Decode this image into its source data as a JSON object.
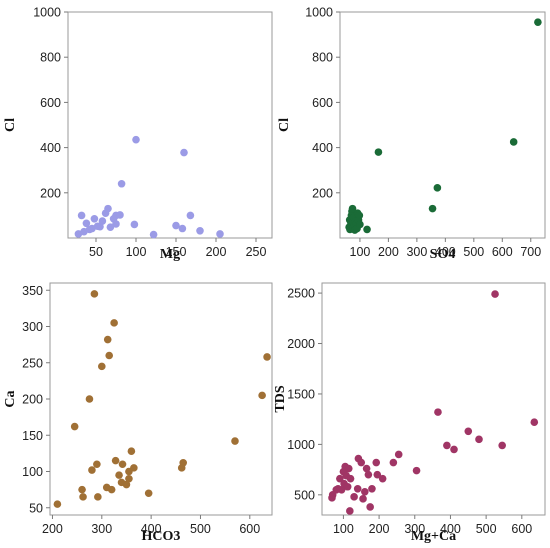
{
  "chart_data": [
    {
      "type": "scatter",
      "title": "",
      "xlabel": "Mg",
      "ylabel": "Cl",
      "xlim": [
        15,
        270
      ],
      "ylim": [
        0,
        1000
      ],
      "xticks": [
        50,
        100,
        150,
        200,
        250
      ],
      "yticks": [
        200,
        400,
        600,
        800,
        1000
      ],
      "color": "#9b9be6",
      "grid": false,
      "points": [
        [
          28,
          18
        ],
        [
          32,
          100
        ],
        [
          35,
          28
        ],
        [
          38,
          65
        ],
        [
          42,
          38
        ],
        [
          45,
          42
        ],
        [
          48,
          85
        ],
        [
          52,
          52
        ],
        [
          55,
          50
        ],
        [
          58,
          75
        ],
        [
          62,
          110
        ],
        [
          65,
          130
        ],
        [
          68,
          48
        ],
        [
          72,
          85
        ],
        [
          75,
          62
        ],
        [
          75,
          100
        ],
        [
          80,
          102
        ],
        [
          82,
          240
        ],
        [
          98,
          60
        ],
        [
          100,
          435
        ],
        [
          122,
          15
        ],
        [
          150,
          55
        ],
        [
          158,
          42
        ],
        [
          160,
          378
        ],
        [
          168,
          100
        ],
        [
          180,
          32
        ],
        [
          205,
          18
        ]
      ]
    },
    {
      "type": "scatter",
      "title": "",
      "xlabel": "SO4",
      "ylabel": "Cl",
      "xlim": [
        30,
        750
      ],
      "ylim": [
        0,
        1000
      ],
      "xticks": [
        100,
        200,
        300,
        400,
        500,
        600,
        700
      ],
      "yticks": [
        200,
        400,
        600,
        800,
        1000
      ],
      "color": "#1a6b37",
      "grid": false,
      "points": [
        [
          62,
          48
        ],
        [
          64,
          80
        ],
        [
          65,
          38
        ],
        [
          68,
          60
        ],
        [
          70,
          100
        ],
        [
          72,
          118
        ],
        [
          74,
          130
        ],
        [
          75,
          45
        ],
        [
          76,
          70
        ],
        [
          78,
          90
        ],
        [
          80,
          55
        ],
        [
          82,
          35
        ],
        [
          85,
          75
        ],
        [
          88,
          62
        ],
        [
          90,
          42
        ],
        [
          92,
          110
        ],
        [
          95,
          80
        ],
        [
          98,
          100
        ],
        [
          100,
          60
        ],
        [
          125,
          38
        ],
        [
          165,
          380
        ],
        [
          355,
          130
        ],
        [
          372,
          222
        ],
        [
          640,
          425
        ],
        [
          725,
          955
        ]
      ]
    },
    {
      "type": "scatter",
      "title": "",
      "xlabel": "HCO3",
      "ylabel": "Ca",
      "xlim": [
        195,
        645
      ],
      "ylim": [
        40,
        360
      ],
      "xticks": [
        200,
        300,
        400,
        500,
        600
      ],
      "yticks": [
        50,
        100,
        150,
        200,
        250,
        300,
        350
      ],
      "color": "#a07035",
      "grid": false,
      "points": [
        [
          210,
          55
        ],
        [
          245,
          162
        ],
        [
          260,
          75
        ],
        [
          262,
          65
        ],
        [
          275,
          200
        ],
        [
          280,
          102
        ],
        [
          285,
          345
        ],
        [
          290,
          110
        ],
        [
          292,
          65
        ],
        [
          300,
          245
        ],
        [
          310,
          78
        ],
        [
          312,
          282
        ],
        [
          315,
          260
        ],
        [
          320,
          75
        ],
        [
          325,
          305
        ],
        [
          328,
          115
        ],
        [
          335,
          95
        ],
        [
          340,
          85
        ],
        [
          342,
          110
        ],
        [
          350,
          82
        ],
        [
          355,
          100
        ],
        [
          355,
          90
        ],
        [
          360,
          128
        ],
        [
          365,
          105
        ],
        [
          395,
          70
        ],
        [
          462,
          105
        ],
        [
          465,
          112
        ],
        [
          570,
          142
        ],
        [
          625,
          205
        ],
        [
          635,
          258
        ]
      ]
    },
    {
      "type": "scatter",
      "title": "",
      "xlabel": "Mg+Ca",
      "ylabel": "TDS",
      "xlim": [
        40,
        665
      ],
      "ylim": [
        300,
        2600
      ],
      "xticks": [
        100,
        200,
        300,
        400,
        500,
        600
      ],
      "yticks": [
        500,
        1000,
        1500,
        2000,
        2500
      ],
      "color": "#a03565",
      "grid": false,
      "points": [
        [
          68,
          470
        ],
        [
          70,
          500
        ],
        [
          80,
          550
        ],
        [
          85,
          560
        ],
        [
          90,
          660
        ],
        [
          95,
          550
        ],
        [
          100,
          730
        ],
        [
          102,
          610
        ],
        [
          105,
          780
        ],
        [
          108,
          690
        ],
        [
          112,
          580
        ],
        [
          115,
          760
        ],
        [
          118,
          340
        ],
        [
          120,
          660
        ],
        [
          130,
          480
        ],
        [
          140,
          560
        ],
        [
          142,
          860
        ],
        [
          150,
          820
        ],
        [
          155,
          460
        ],
        [
          160,
          530
        ],
        [
          165,
          760
        ],
        [
          170,
          700
        ],
        [
          175,
          380
        ],
        [
          180,
          560
        ],
        [
          192,
          820
        ],
        [
          195,
          700
        ],
        [
          210,
          660
        ],
        [
          240,
          820
        ],
        [
          255,
          900
        ],
        [
          305,
          740
        ],
        [
          365,
          1320
        ],
        [
          390,
          990
        ],
        [
          410,
          950
        ],
        [
          450,
          1130
        ],
        [
          480,
          1050
        ],
        [
          525,
          2490
        ],
        [
          545,
          990
        ],
        [
          635,
          1220
        ]
      ]
    }
  ]
}
